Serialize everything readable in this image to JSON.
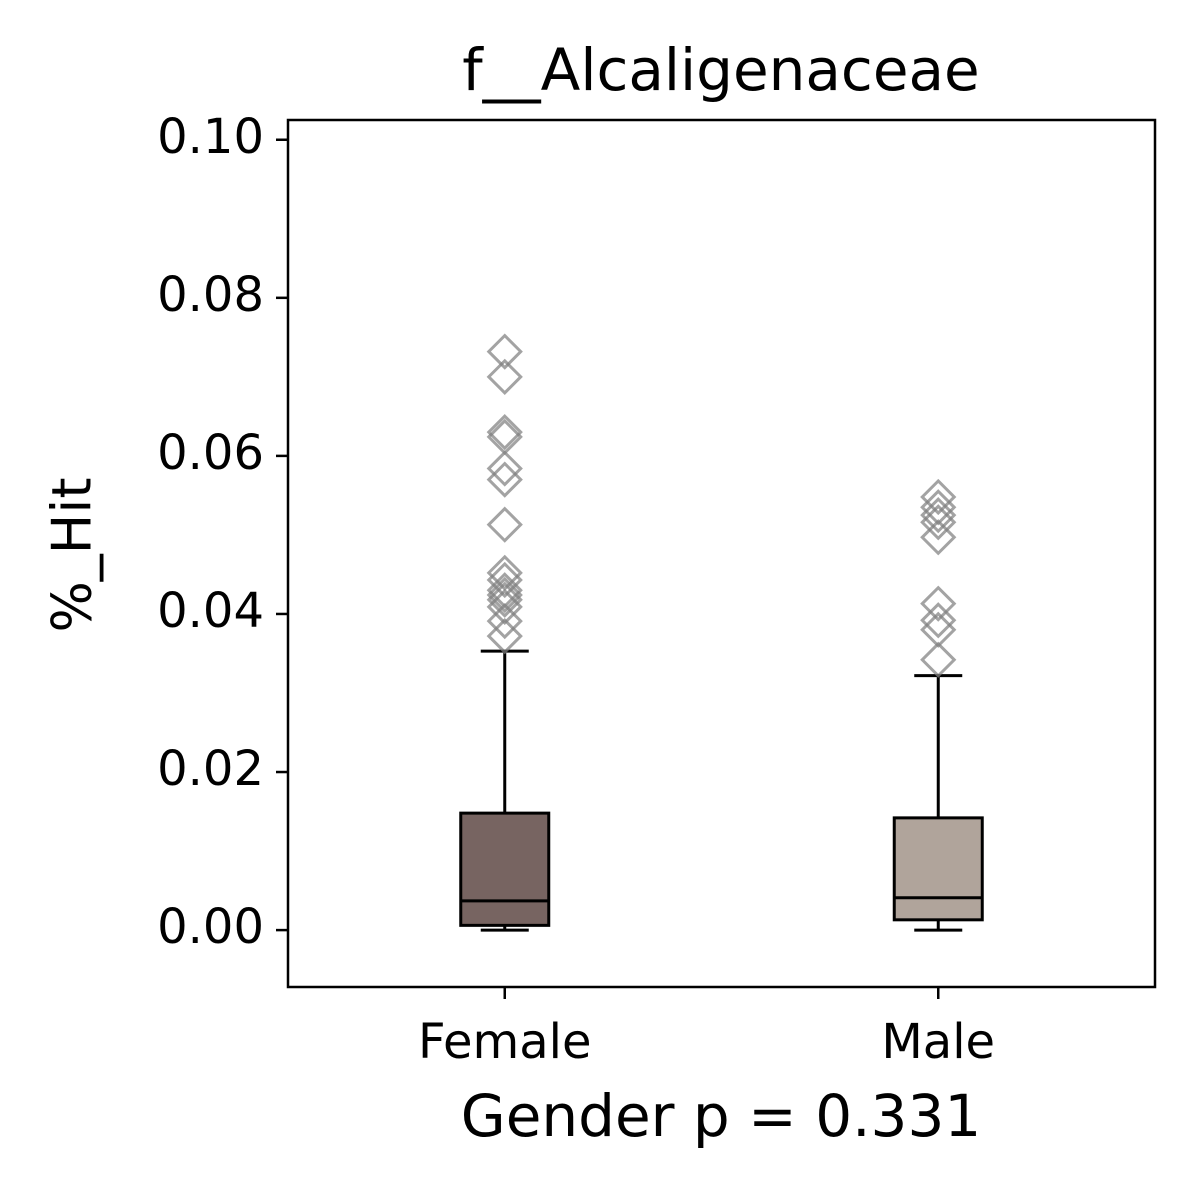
{
  "chart_data": {
    "type": "box",
    "title": "f__Alcaligenaceae",
    "x_label": "Gender p = 0.331",
    "y_label": "%_Hit",
    "categories": [
      "Female",
      "Male"
    ],
    "boxes": [
      {
        "whislo": 0.0,
        "q1": 0.0006,
        "med": 0.0037,
        "q3": 0.0148,
        "whishi": 0.0353,
        "color": "#776461",
        "fliers": [
          0.0732,
          0.07,
          0.063,
          0.0624,
          0.0584,
          0.057,
          0.0513,
          0.0452,
          0.0443,
          0.043,
          0.0424,
          0.0418,
          0.0409,
          0.0391,
          0.0372
        ]
      },
      {
        "whislo": 0.0,
        "q1": 0.0013,
        "med": 0.0041,
        "q3": 0.0142,
        "whishi": 0.0322,
        "color": "#b0a49b",
        "fliers": [
          0.0548,
          0.0535,
          0.0525,
          0.0516,
          0.0497,
          0.0413,
          0.0392,
          0.038,
          0.0342
        ]
      }
    ],
    "flier_color": "#808080",
    "ylim": [
      -0.0072,
      0.1025
    ],
    "yticks": [
      {
        "value": 0,
        "label": "0.00"
      },
      {
        "value": 0.02,
        "label": "0.02"
      },
      {
        "value": 0.04,
        "label": "0.04"
      },
      {
        "value": 0.06,
        "label": "0.06"
      },
      {
        "value": 0.08,
        "label": "0.08"
      },
      {
        "value": 0.1,
        "label": "0.10"
      }
    ],
    "grid": false
  }
}
